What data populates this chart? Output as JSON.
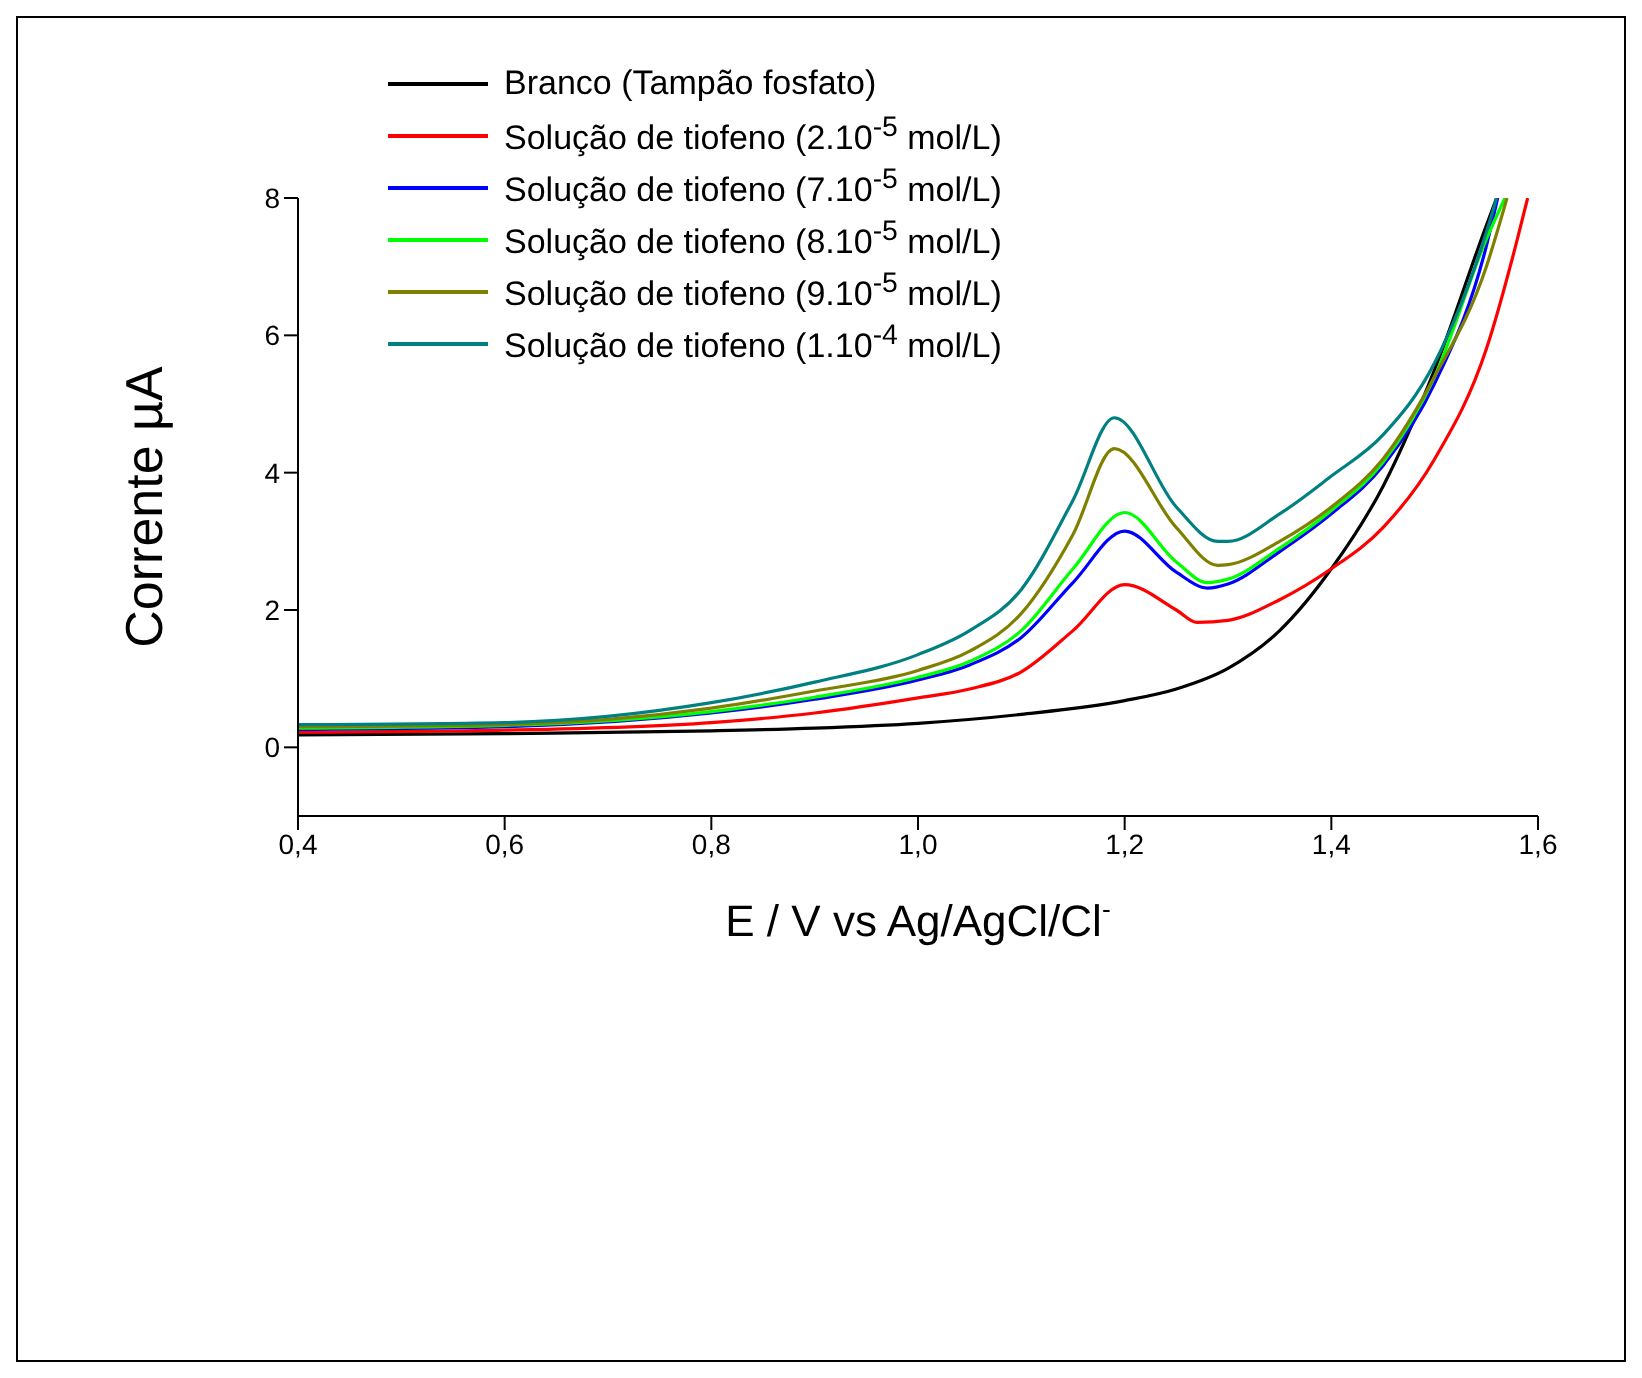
{
  "chart_data": {
    "type": "line",
    "xlabel": "E / V vs Ag/AgCl/Cl$^{-}$",
    "ylabel": "Corrente  µA",
    "xlim": [
      0.4,
      1.6
    ],
    "xticks": [
      {
        "value": 0.4,
        "label": "0,4"
      },
      {
        "value": 0.6,
        "label": "0,6"
      },
      {
        "value": 0.8,
        "label": "0,8"
      },
      {
        "value": 1.0,
        "label": "1,0"
      },
      {
        "value": 1.2,
        "label": "1,2"
      },
      {
        "value": 1.4,
        "label": "1,4"
      },
      {
        "value": 1.6,
        "label": "1,6"
      }
    ],
    "ylim": [
      -1,
      8
    ],
    "yticks": [
      0,
      2,
      4,
      6,
      8
    ],
    "grid": false,
    "legend": "top left",
    "marker": "none",
    "line_style": "solid",
    "series": [
      {
        "name": "Branco (Tampão fosfato)",
        "color": "#000000",
        "x": [
          0.4,
          0.6,
          0.8,
          0.9,
          1.0,
          1.1,
          1.2,
          1.25,
          1.3,
          1.35,
          1.4,
          1.45,
          1.5,
          1.55,
          1.56
        ],
        "values": [
          0.18,
          0.2,
          0.24,
          0.28,
          0.35,
          0.48,
          0.68,
          0.85,
          1.15,
          1.7,
          2.6,
          3.8,
          5.5,
          7.6,
          8
        ]
      },
      {
        "name": "Solução de tiofeno (2.10$^{-5}$ mol/L)",
        "color": "#ff0000",
        "x": [
          0.4,
          0.6,
          0.8,
          0.9,
          1.0,
          1.05,
          1.1,
          1.15,
          1.2,
          1.25,
          1.27,
          1.3,
          1.35,
          1.4,
          1.45,
          1.5,
          1.55,
          1.58,
          1.59
        ],
        "values": [
          0.22,
          0.25,
          0.36,
          0.5,
          0.72,
          0.85,
          1.1,
          1.7,
          2.37,
          2.0,
          1.82,
          1.85,
          2.15,
          2.6,
          3.2,
          4.2,
          5.8,
          7.4,
          8
        ]
      },
      {
        "name": "Solução de tiofeno (7.10$^{-5}$ mol/L)",
        "color": "#0000ff",
        "x": [
          0.4,
          0.6,
          0.8,
          0.9,
          1.0,
          1.05,
          1.1,
          1.15,
          1.2,
          1.25,
          1.28,
          1.3,
          1.35,
          1.4,
          1.45,
          1.5,
          1.55,
          1.561
        ],
        "values": [
          0.26,
          0.3,
          0.5,
          0.7,
          0.98,
          1.2,
          1.6,
          2.4,
          3.15,
          2.55,
          2.32,
          2.38,
          2.85,
          3.4,
          4.1,
          5.3,
          7.3,
          8
        ]
      },
      {
        "name": "Solução de tiofeno (8.10$^{-5}$ mol/L)",
        "color": "#00ff00",
        "x": [
          0.4,
          0.6,
          0.8,
          0.9,
          1.0,
          1.05,
          1.1,
          1.15,
          1.2,
          1.25,
          1.28,
          1.3,
          1.35,
          1.4,
          1.45,
          1.5,
          1.55,
          1.568
        ],
        "values": [
          0.28,
          0.32,
          0.52,
          0.73,
          1.02,
          1.25,
          1.7,
          2.6,
          3.42,
          2.7,
          2.4,
          2.45,
          2.9,
          3.45,
          4.15,
          5.4,
          7.4,
          8
        ]
      },
      {
        "name": "Solução de tiofeno (9.10$^{-5}$ mol/L)",
        "color": "#808000",
        "x": [
          0.4,
          0.6,
          0.8,
          0.9,
          1.0,
          1.05,
          1.1,
          1.15,
          1.19,
          1.25,
          1.29,
          1.3,
          1.35,
          1.4,
          1.45,
          1.5,
          1.55,
          1.57
        ],
        "values": [
          0.3,
          0.33,
          0.57,
          0.82,
          1.12,
          1.4,
          1.95,
          3.1,
          4.35,
          3.2,
          2.65,
          2.66,
          3.0,
          3.5,
          4.2,
          5.4,
          7.0,
          8
        ]
      },
      {
        "name": "Solução de tiofeno (1.10$^{-4}$ mol/L)",
        "color": "#008080",
        "x": [
          0.4,
          0.6,
          0.8,
          0.9,
          1.0,
          1.05,
          1.1,
          1.15,
          1.19,
          1.25,
          1.29,
          1.3,
          1.35,
          1.4,
          1.45,
          1.5,
          1.55,
          1.56
        ],
        "values": [
          0.33,
          0.36,
          0.65,
          0.95,
          1.35,
          1.7,
          2.3,
          3.6,
          4.8,
          3.5,
          3.0,
          3.0,
          3.4,
          3.95,
          4.55,
          5.6,
          7.5,
          8
        ]
      }
    ]
  }
}
